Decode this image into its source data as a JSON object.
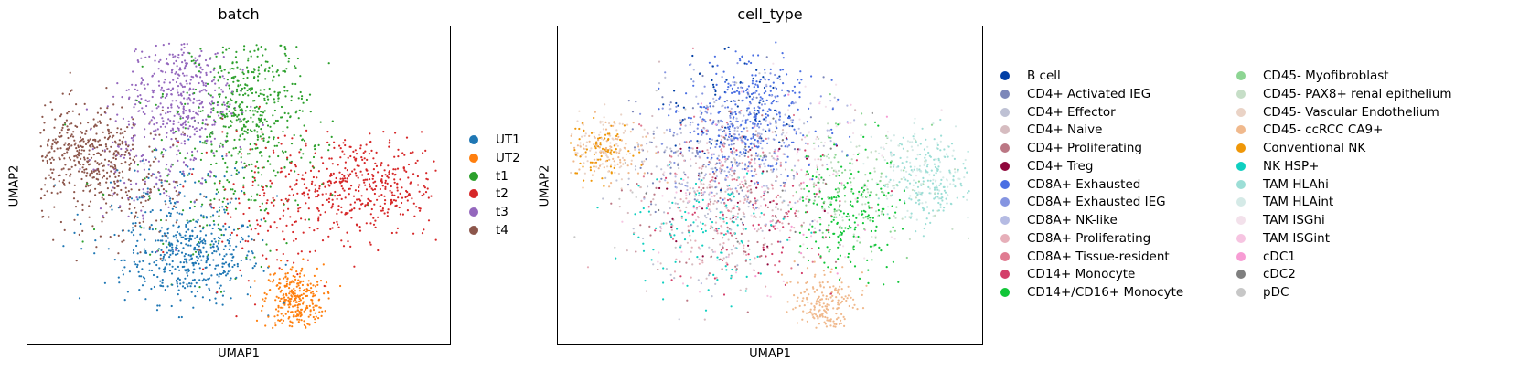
{
  "chart_data": [
    {
      "type": "scatter",
      "title": "batch",
      "xlabel": "UMAP1",
      "ylabel": "UMAP2",
      "grid": false,
      "legend_placement": "right",
      "series": [
        {
          "name": "UT1",
          "color": "#1f77b4",
          "clusters": [
            {
              "cx": 0.39,
              "cy": 0.27,
              "sx": 0.08,
              "sy": 0.07,
              "n": 380
            },
            {
              "cx": 0.35,
              "cy": 0.4,
              "sx": 0.1,
              "sy": 0.1,
              "n": 150
            }
          ]
        },
        {
          "name": "UT2",
          "color": "#ff7f0e",
          "clusters": [
            {
              "cx": 0.63,
              "cy": 0.14,
              "sx": 0.035,
              "sy": 0.055,
              "n": 300
            }
          ]
        },
        {
          "name": "t1",
          "color": "#2ca02c",
          "clusters": [
            {
              "cx": 0.53,
              "cy": 0.74,
              "sx": 0.07,
              "sy": 0.12,
              "n": 450
            },
            {
              "cx": 0.45,
              "cy": 0.5,
              "sx": 0.12,
              "sy": 0.15,
              "n": 150
            }
          ]
        },
        {
          "name": "t2",
          "color": "#d62728",
          "clusters": [
            {
              "cx": 0.8,
              "cy": 0.5,
              "sx": 0.1,
              "sy": 0.08,
              "n": 420
            },
            {
              "cx": 0.6,
              "cy": 0.45,
              "sx": 0.1,
              "sy": 0.12,
              "n": 160
            }
          ]
        },
        {
          "name": "t3",
          "color": "#9467bd",
          "clusters": [
            {
              "cx": 0.36,
              "cy": 0.79,
              "sx": 0.06,
              "sy": 0.1,
              "n": 380
            },
            {
              "cx": 0.3,
              "cy": 0.6,
              "sx": 0.08,
              "sy": 0.1,
              "n": 160
            }
          ]
        },
        {
          "name": "t4",
          "color": "#8c564b",
          "clusters": [
            {
              "cx": 0.13,
              "cy": 0.59,
              "sx": 0.07,
              "sy": 0.08,
              "n": 420
            },
            {
              "cx": 0.25,
              "cy": 0.5,
              "sx": 0.09,
              "sy": 0.1,
              "n": 140
            }
          ]
        }
      ]
    },
    {
      "type": "scatter",
      "title": "cell_type",
      "xlabel": "UMAP1",
      "ylabel": "UMAP2",
      "grid": false,
      "legend_placement": "right",
      "series": [
        {
          "name": "B cell",
          "color": "#023fa5",
          "clusters": [
            {
              "cx": 0.4,
              "cy": 0.75,
              "sx": 0.08,
              "sy": 0.1,
              "n": 70
            }
          ]
        },
        {
          "name": "CD4+ Activated IEG",
          "color": "#7d87b9",
          "clusters": [
            {
              "cx": 0.38,
              "cy": 0.6,
              "sx": 0.1,
              "sy": 0.12,
              "n": 110
            }
          ]
        },
        {
          "name": "CD4+ Effector",
          "color": "#bec1d4",
          "clusters": [
            {
              "cx": 0.35,
              "cy": 0.5,
              "sx": 0.12,
              "sy": 0.14,
              "n": 140
            }
          ]
        },
        {
          "name": "CD4+ Naive",
          "color": "#d6bcc0",
          "clusters": [
            {
              "cx": 0.4,
              "cy": 0.45,
              "sx": 0.12,
              "sy": 0.14,
              "n": 130
            }
          ]
        },
        {
          "name": "CD4+ Proliferating",
          "color": "#bb7784",
          "clusters": [
            {
              "cx": 0.38,
              "cy": 0.42,
              "sx": 0.1,
              "sy": 0.12,
              "n": 80
            }
          ]
        },
        {
          "name": "CD4+ Treg",
          "color": "#8e063b",
          "clusters": [
            {
              "cx": 0.42,
              "cy": 0.48,
              "sx": 0.1,
              "sy": 0.12,
              "n": 40
            }
          ]
        },
        {
          "name": "CD8A+ Exhausted",
          "color": "#4a6fe3",
          "clusters": [
            {
              "cx": 0.45,
              "cy": 0.72,
              "sx": 0.08,
              "sy": 0.1,
              "n": 320
            }
          ]
        },
        {
          "name": "CD8A+ Exhausted IEG",
          "color": "#8595e1",
          "clusters": [
            {
              "cx": 0.42,
              "cy": 0.68,
              "sx": 0.08,
              "sy": 0.1,
              "n": 140
            }
          ]
        },
        {
          "name": "CD8A+ NK-like",
          "color": "#b5bbe3",
          "clusters": [
            {
              "cx": 0.45,
              "cy": 0.6,
              "sx": 0.1,
              "sy": 0.12,
              "n": 120
            }
          ]
        },
        {
          "name": "CD8A+ Proliferating",
          "color": "#e6afb9",
          "clusters": [
            {
              "cx": 0.38,
              "cy": 0.45,
              "sx": 0.1,
              "sy": 0.12,
              "n": 110
            }
          ]
        },
        {
          "name": "CD8A+ Tissue-resident",
          "color": "#e07b91",
          "clusters": [
            {
              "cx": 0.42,
              "cy": 0.55,
              "sx": 0.1,
              "sy": 0.12,
              "n": 90
            }
          ]
        },
        {
          "name": "CD14+ Monocyte",
          "color": "#d33f6a",
          "clusters": [
            {
              "cx": 0.5,
              "cy": 0.4,
              "sx": 0.12,
              "sy": 0.12,
              "n": 70
            }
          ]
        },
        {
          "name": "CD14+/CD16+ Monocyte",
          "color": "#11c638",
          "clusters": [
            {
              "cx": 0.68,
              "cy": 0.42,
              "sx": 0.06,
              "sy": 0.1,
              "n": 200
            }
          ]
        },
        {
          "name": "CD45- Myofibroblast",
          "color": "#8dd593",
          "clusters": [
            {
              "cx": 0.7,
              "cy": 0.5,
              "sx": 0.08,
              "sy": 0.1,
              "n": 90
            }
          ]
        },
        {
          "name": "CD45- PAX8+ renal epithelium",
          "color": "#c6dec7",
          "clusters": [
            {
              "cx": 0.75,
              "cy": 0.5,
              "sx": 0.08,
              "sy": 0.08,
              "n": 80
            }
          ]
        },
        {
          "name": "CD45- Vascular Endothelium",
          "color": "#ead3c6",
          "clusters": [
            {
              "cx": 0.1,
              "cy": 0.62,
              "sx": 0.05,
              "sy": 0.06,
              "n": 110
            }
          ]
        },
        {
          "name": "CD45- ccRCC CA9+",
          "color": "#f0b98d",
          "clusters": [
            {
              "cx": 0.63,
              "cy": 0.12,
              "sx": 0.035,
              "sy": 0.05,
              "n": 200
            },
            {
              "cx": 0.12,
              "cy": 0.6,
              "sx": 0.05,
              "sy": 0.05,
              "n": 80
            }
          ]
        },
        {
          "name": "Conventional NK",
          "color": "#ef9708",
          "clusters": [
            {
              "cx": 0.1,
              "cy": 0.6,
              "sx": 0.04,
              "sy": 0.05,
              "n": 80
            }
          ]
        },
        {
          "name": "NK HSP+",
          "color": "#0fcfc0",
          "clusters": [
            {
              "cx": 0.35,
              "cy": 0.35,
              "sx": 0.1,
              "sy": 0.1,
              "n": 110
            }
          ]
        },
        {
          "name": "TAM HLAhi",
          "color": "#9cded6",
          "clusters": [
            {
              "cx": 0.88,
              "cy": 0.52,
              "sx": 0.05,
              "sy": 0.07,
              "n": 180
            }
          ]
        },
        {
          "name": "TAM HLAint",
          "color": "#d5eae7",
          "clusters": [
            {
              "cx": 0.85,
              "cy": 0.55,
              "sx": 0.06,
              "sy": 0.08,
              "n": 120
            }
          ]
        },
        {
          "name": "TAM ISGhi",
          "color": "#f3e1eb",
          "clusters": [
            {
              "cx": 0.6,
              "cy": 0.55,
              "sx": 0.12,
              "sy": 0.14,
              "n": 80
            }
          ]
        },
        {
          "name": "TAM ISGint",
          "color": "#f6c4e1",
          "clusters": [
            {
              "cx": 0.45,
              "cy": 0.45,
              "sx": 0.12,
              "sy": 0.14,
              "n": 60
            }
          ]
        },
        {
          "name": "cDC1",
          "color": "#f79cd4",
          "clusters": [
            {
              "cx": 0.5,
              "cy": 0.5,
              "sx": 0.12,
              "sy": 0.14,
              "n": 30
            }
          ]
        },
        {
          "name": "cDC2",
          "color": "#7f7f7f",
          "clusters": [
            {
              "cx": 0.45,
              "cy": 0.5,
              "sx": 0.12,
              "sy": 0.14,
              "n": 40
            }
          ]
        },
        {
          "name": "pDC",
          "color": "#c7c7c7",
          "clusters": [
            {
              "cx": 0.4,
              "cy": 0.5,
              "sx": 0.12,
              "sy": 0.14,
              "n": 40
            }
          ]
        }
      ]
    }
  ]
}
